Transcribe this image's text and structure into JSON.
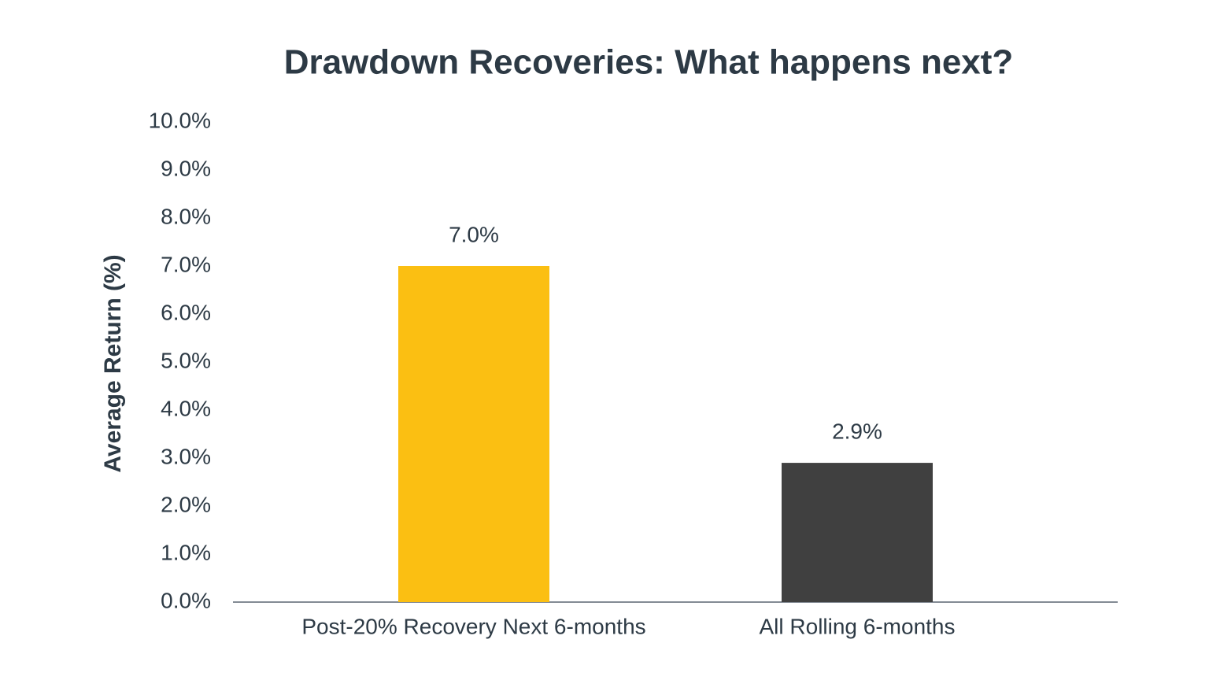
{
  "chart_data": {
    "type": "bar",
    "title": "Drawdown Recoveries: What happens next?",
    "y_label": "Average Return (%)",
    "categories": [
      "Post-20% Recovery Next 6-months",
      "All Rolling 6-months"
    ],
    "values": [
      7.0,
      2.9
    ],
    "value_labels": [
      "7.0%",
      "2.9%"
    ],
    "colors": [
      "#fbbf12",
      "#404040"
    ],
    "ylim": [
      0,
      10
    ],
    "yticks": [
      {
        "value": 0,
        "label": "0.0%"
      },
      {
        "value": 1,
        "label": "1.0%"
      },
      {
        "value": 2,
        "label": "2.0%"
      },
      {
        "value": 3,
        "label": "3.0%"
      },
      {
        "value": 4,
        "label": "4.0%"
      },
      {
        "value": 5,
        "label": "5.0%"
      },
      {
        "value": 6,
        "label": "6.0%"
      },
      {
        "value": 7,
        "label": "7.0%"
      },
      {
        "value": 8,
        "label": "8.0%"
      },
      {
        "value": 9,
        "label": "9.0%"
      },
      {
        "value": 10,
        "label": "10.0%"
      }
    ],
    "grid": false
  }
}
